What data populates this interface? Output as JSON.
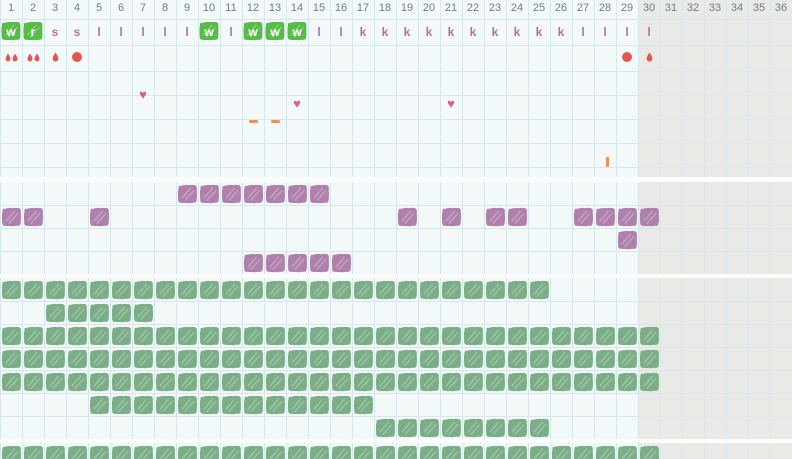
{
  "meta": {
    "total_columns": 36,
    "active_days": 30,
    "inactive_from_day": 30
  },
  "colors": {
    "background": "#f3f8f9",
    "section_gap": "#fbfdfd",
    "inactive_zone": "#e9e9e6",
    "gridline": "#d8e7ec",
    "day_number_text": "#6f7d8a",
    "letter_text": "#b173a7",
    "letter_highlight_bg": "#57bb47",
    "letter_highlight_text": "#ffffff",
    "flow_red": "#e25752",
    "heart_pink": "#d9608b",
    "dash_orange": "#ef914e",
    "purple_blob": "#af80ab",
    "green_blob": "#7bad86"
  },
  "day_numbers": [
    1,
    2,
    3,
    4,
    5,
    6,
    7,
    8,
    9,
    10,
    11,
    12,
    13,
    14,
    15,
    16,
    17,
    18,
    19,
    20,
    21,
    22,
    23,
    24,
    25,
    26,
    27,
    28,
    29,
    30,
    31,
    32,
    33,
    34,
    35,
    36
  ],
  "day_letters": [
    "w",
    "r",
    "s",
    "s",
    "l",
    "l",
    "l",
    "l",
    "l",
    "w",
    "l",
    "w",
    "w",
    "w",
    "l",
    "l",
    "k",
    "k",
    "k",
    "k",
    "k",
    "k",
    "k",
    "k",
    "k",
    "k",
    "l",
    "l",
    "l",
    "l"
  ],
  "highlighted_letter_days": [
    1,
    2,
    10,
    12,
    13,
    14
  ],
  "flow_markers": [
    {
      "day": 1,
      "type": "drops-2"
    },
    {
      "day": 2,
      "type": "drops-2"
    },
    {
      "day": 3,
      "type": "drop-1"
    },
    {
      "day": 4,
      "type": "dot"
    },
    {
      "day": 29,
      "type": "dot"
    },
    {
      "day": 30,
      "type": "drop-1"
    }
  ],
  "event_markers": [
    {
      "type": "heart",
      "day": 7,
      "row": 4
    },
    {
      "type": "heart",
      "day": 14,
      "row": 5
    },
    {
      "type": "heart",
      "day": 21,
      "row": 5
    },
    {
      "type": "dash",
      "day": 12,
      "row": 6
    },
    {
      "type": "dash",
      "day": 13,
      "row": 6
    },
    {
      "type": "tick",
      "day": 28,
      "row": 7
    }
  ],
  "purple_section_rows": [
    [
      9,
      10,
      11,
      12,
      13,
      14,
      15
    ],
    [
      1,
      2,
      5,
      19,
      21,
      23,
      24,
      27,
      28,
      29,
      30
    ],
    [
      29
    ],
    [
      12,
      13,
      14,
      15,
      16
    ]
  ],
  "green_section_rows": [
    [
      1,
      2,
      3,
      4,
      5,
      6,
      7,
      8,
      9,
      10,
      11,
      12,
      13,
      14,
      15,
      16,
      17,
      18,
      19,
      20,
      21,
      22,
      23,
      24,
      25
    ],
    [
      3,
      4,
      5,
      6,
      7
    ],
    [
      1,
      2,
      3,
      4,
      5,
      6,
      7,
      8,
      9,
      10,
      11,
      12,
      13,
      14,
      15,
      16,
      17,
      18,
      19,
      20,
      21,
      22,
      23,
      24,
      25,
      26,
      27,
      28,
      29,
      30
    ],
    [
      1,
      2,
      3,
      4,
      5,
      6,
      7,
      8,
      9,
      10,
      11,
      12,
      13,
      14,
      15,
      16,
      17,
      18,
      19,
      20,
      21,
      22,
      23,
      24,
      25,
      26,
      27,
      28,
      29,
      30
    ],
    [
      1,
      2,
      3,
      4,
      5,
      6,
      7,
      8,
      9,
      10,
      11,
      12,
      13,
      14,
      15,
      16,
      17,
      18,
      19,
      20,
      21,
      22,
      23,
      24,
      25,
      26,
      27,
      28,
      29,
      30
    ],
    [
      5,
      6,
      7,
      8,
      9,
      10,
      11,
      12,
      13,
      14,
      15,
      16,
      17
    ],
    [
      18,
      19,
      20,
      21,
      22,
      23,
      24,
      25
    ]
  ],
  "bottom_section_rows": [
    [
      1,
      2,
      3,
      4,
      5,
      6,
      7,
      8,
      9,
      10,
      11,
      12,
      13,
      14,
      15,
      16,
      17,
      18,
      19,
      20,
      21,
      22,
      23,
      24,
      25,
      26,
      27,
      28,
      29,
      30
    ]
  ]
}
